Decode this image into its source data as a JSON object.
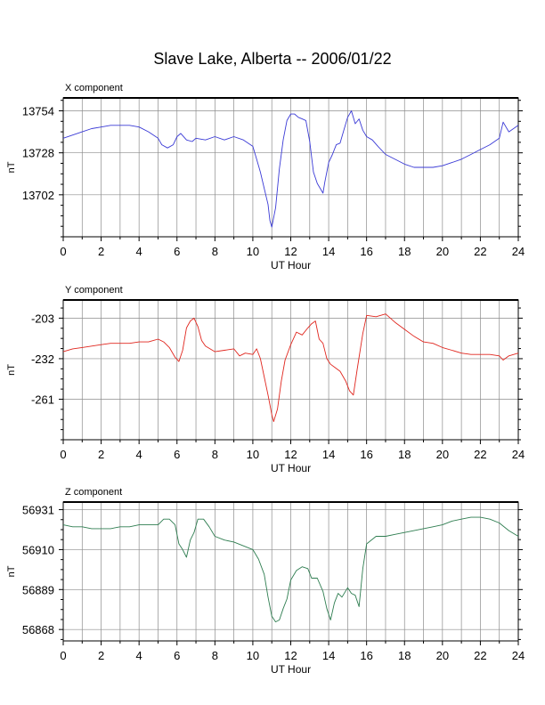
{
  "title": "Slave Lake, Alberta -- 2006/01/22",
  "chart_data": [
    {
      "type": "line",
      "panel_label": "X component",
      "xlabel": "UT Hour",
      "ylabel": "nT",
      "xlim": [
        0,
        24
      ],
      "ylim": [
        13676,
        13762
      ],
      "x_ticks": [
        0,
        2,
        4,
        6,
        8,
        10,
        12,
        14,
        16,
        18,
        20,
        22,
        24
      ],
      "y_ticks": [
        13702,
        13728,
        13754
      ],
      "grid": true,
      "color": "#3a3ad6",
      "series": [
        {
          "x": [
            0,
            0.5,
            1,
            1.5,
            2,
            2.5,
            3,
            3.5,
            4,
            4.5,
            5,
            5.2,
            5.5,
            5.8,
            6,
            6.2,
            6.5,
            6.8,
            7,
            7.5,
            8,
            8.5,
            9,
            9.5,
            10,
            10.2,
            10.4,
            10.6,
            10.8,
            10.9,
            11,
            11.2,
            11.4,
            11.6,
            11.8,
            12,
            12.2,
            12.4,
            12.6,
            12.8,
            13,
            13.2,
            13.4,
            13.6,
            13.7,
            13.8,
            14,
            14.2,
            14.4,
            14.6,
            14.8,
            15,
            15.2,
            15.4,
            15.6,
            15.8,
            16,
            16.3,
            16.6,
            17,
            17.5,
            18,
            18.5,
            19,
            19.5,
            20,
            20.5,
            21,
            21.5,
            22,
            22.5,
            23,
            23.2,
            23.5,
            24
          ],
          "y": [
            13737,
            13739,
            13741,
            13743,
            13744,
            13745,
            13745,
            13745,
            13744,
            13741,
            13737,
            13733,
            13731,
            13733,
            13738,
            13740,
            13736,
            13735,
            13737,
            13736,
            13738,
            13736,
            13738,
            13736,
            13732,
            13724,
            13716,
            13706,
            13696,
            13686,
            13682,
            13694,
            13718,
            13736,
            13748,
            13752,
            13752,
            13750,
            13749,
            13748,
            13735,
            13716,
            13709,
            13705,
            13703,
            13710,
            13722,
            13727,
            13733,
            13734,
            13742,
            13750,
            13754,
            13746,
            13749,
            13742,
            13738,
            13736,
            13732,
            13727,
            13724,
            13721,
            13719,
            13719,
            13719,
            13720,
            13722,
            13724,
            13727,
            13730,
            13733,
            13737,
            13747,
            13741,
            13745
          ]
        }
      ]
    },
    {
      "type": "line",
      "panel_label": "Y component",
      "xlabel": "UT Hour",
      "ylabel": "nT",
      "xlim": [
        0,
        24
      ],
      "ylim": [
        -290,
        -190
      ],
      "x_ticks": [
        0,
        2,
        4,
        6,
        8,
        10,
        12,
        14,
        16,
        18,
        20,
        22,
        24
      ],
      "y_ticks": [
        -203,
        -232,
        -261
      ],
      "grid": true,
      "color": "#e0261e",
      "series": [
        {
          "x": [
            0,
            0.5,
            1,
            1.5,
            2,
            2.5,
            3,
            3.5,
            4,
            4.5,
            5,
            5.3,
            5.6,
            5.9,
            6.1,
            6.3,
            6.5,
            6.7,
            6.9,
            7.1,
            7.3,
            7.5,
            8,
            8.5,
            9,
            9.3,
            9.6,
            10,
            10.2,
            10.4,
            10.6,
            10.8,
            11,
            11.1,
            11.3,
            11.5,
            11.7,
            12,
            12.3,
            12.6,
            12.9,
            13.1,
            13.3,
            13.5,
            13.7,
            13.9,
            14.1,
            14.3,
            14.6,
            14.9,
            15.1,
            15.3,
            15.5,
            15.8,
            16,
            16.5,
            17,
            17.5,
            18,
            18.5,
            19,
            19.5,
            20,
            20.5,
            21,
            21.5,
            22,
            22.5,
            23,
            23.2,
            23.5,
            24
          ],
          "y": [
            -227,
            -225,
            -224,
            -223,
            -222,
            -221,
            -221,
            -221,
            -220,
            -220,
            -218,
            -220,
            -224,
            -231,
            -234,
            -226,
            -210,
            -205,
            -203,
            -209,
            -219,
            -223,
            -227,
            -226,
            -225,
            -230,
            -228,
            -229,
            -225,
            -232,
            -245,
            -258,
            -272,
            -277,
            -268,
            -248,
            -233,
            -222,
            -213,
            -215,
            -210,
            -207,
            -205,
            -218,
            -221,
            -232,
            -236,
            -238,
            -241,
            -248,
            -255,
            -258,
            -240,
            -214,
            -201,
            -202,
            -200,
            -206,
            -211,
            -216,
            -220,
            -221,
            -224,
            -226,
            -228,
            -229,
            -229,
            -229,
            -230,
            -233,
            -230,
            -228
          ]
        }
      ]
    },
    {
      "type": "line",
      "panel_label": "Z component",
      "xlabel": "UT Hour",
      "ylabel": "nT",
      "xlim": [
        0,
        24
      ],
      "ylim": [
        56862,
        56935
      ],
      "x_ticks": [
        0,
        2,
        4,
        6,
        8,
        10,
        12,
        14,
        16,
        18,
        20,
        22,
        24
      ],
      "y_ticks": [
        56868,
        56889,
        56910,
        56931
      ],
      "grid": true,
      "color": "#2e7d50",
      "series": [
        {
          "x": [
            0,
            0.5,
            1,
            1.5,
            2,
            2.5,
            3,
            3.5,
            4,
            4.5,
            5,
            5.3,
            5.6,
            5.9,
            6.1,
            6.3,
            6.5,
            6.7,
            6.9,
            7.1,
            7.4,
            7.7,
            8,
            8.5,
            9,
            9.5,
            10,
            10.3,
            10.6,
            10.8,
            11,
            11.2,
            11.4,
            11.6,
            11.8,
            12,
            12.3,
            12.6,
            12.9,
            13.1,
            13.4,
            13.7,
            13.9,
            14.1,
            14.3,
            14.5,
            14.7,
            15,
            15.2,
            15.4,
            15.6,
            15.8,
            16,
            16.5,
            17,
            17.5,
            18,
            18.5,
            19,
            19.5,
            20,
            20.5,
            21,
            21.5,
            22,
            22.5,
            23,
            23.5,
            24
          ],
          "y": [
            56923,
            56922,
            56922,
            56921,
            56921,
            56921,
            56922,
            56922,
            56923,
            56923,
            56923,
            56926,
            56926,
            56923,
            56913,
            56910,
            56906,
            56915,
            56919,
            56926,
            56926,
            56922,
            56917,
            56915,
            56914,
            56912,
            56910,
            56905,
            56897,
            56885,
            56875,
            56872,
            56873,
            56879,
            56884,
            56894,
            56899,
            56901,
            56900,
            56895,
            56895,
            56888,
            56879,
            56873,
            56882,
            56887,
            56885,
            56890,
            56887,
            56886,
            56880,
            56900,
            56913,
            56917,
            56917,
            56918,
            56919,
            56920,
            56921,
            56922,
            56923,
            56925,
            56926,
            56927,
            56927,
            56926,
            56924,
            56920,
            56917
          ]
        }
      ]
    }
  ]
}
